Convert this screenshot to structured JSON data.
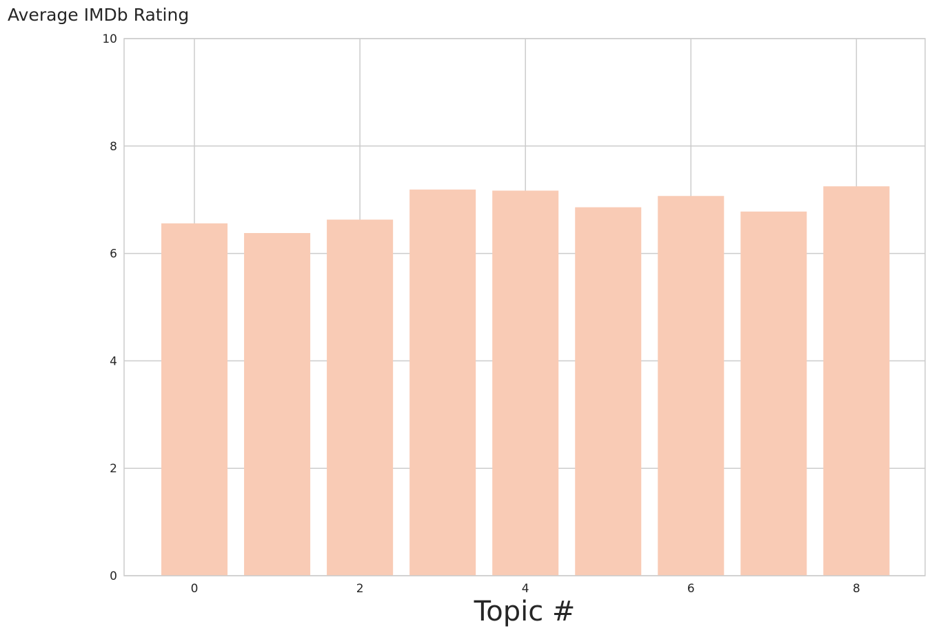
{
  "chart_data": {
    "type": "bar",
    "title": "",
    "xlabel": "Topic #",
    "ylabel": "Average IMDb Rating",
    "categories": [
      0,
      1,
      2,
      3,
      4,
      5,
      6,
      7,
      8
    ],
    "values": [
      6.56,
      6.38,
      6.63,
      7.19,
      7.17,
      6.86,
      7.07,
      6.78,
      7.25
    ],
    "xlim": [
      -0.85,
      8.83
    ],
    "ylim": [
      0,
      10
    ],
    "xticks": [
      0,
      2,
      4,
      6,
      8
    ],
    "yticks": [
      0,
      2,
      4,
      6,
      8,
      10
    ],
    "grid": true,
    "bar_color": "#f9cbb5",
    "grid_color": "#cccccc",
    "axes_edge_color": "#cccccc",
    "text_color": "#262626"
  }
}
